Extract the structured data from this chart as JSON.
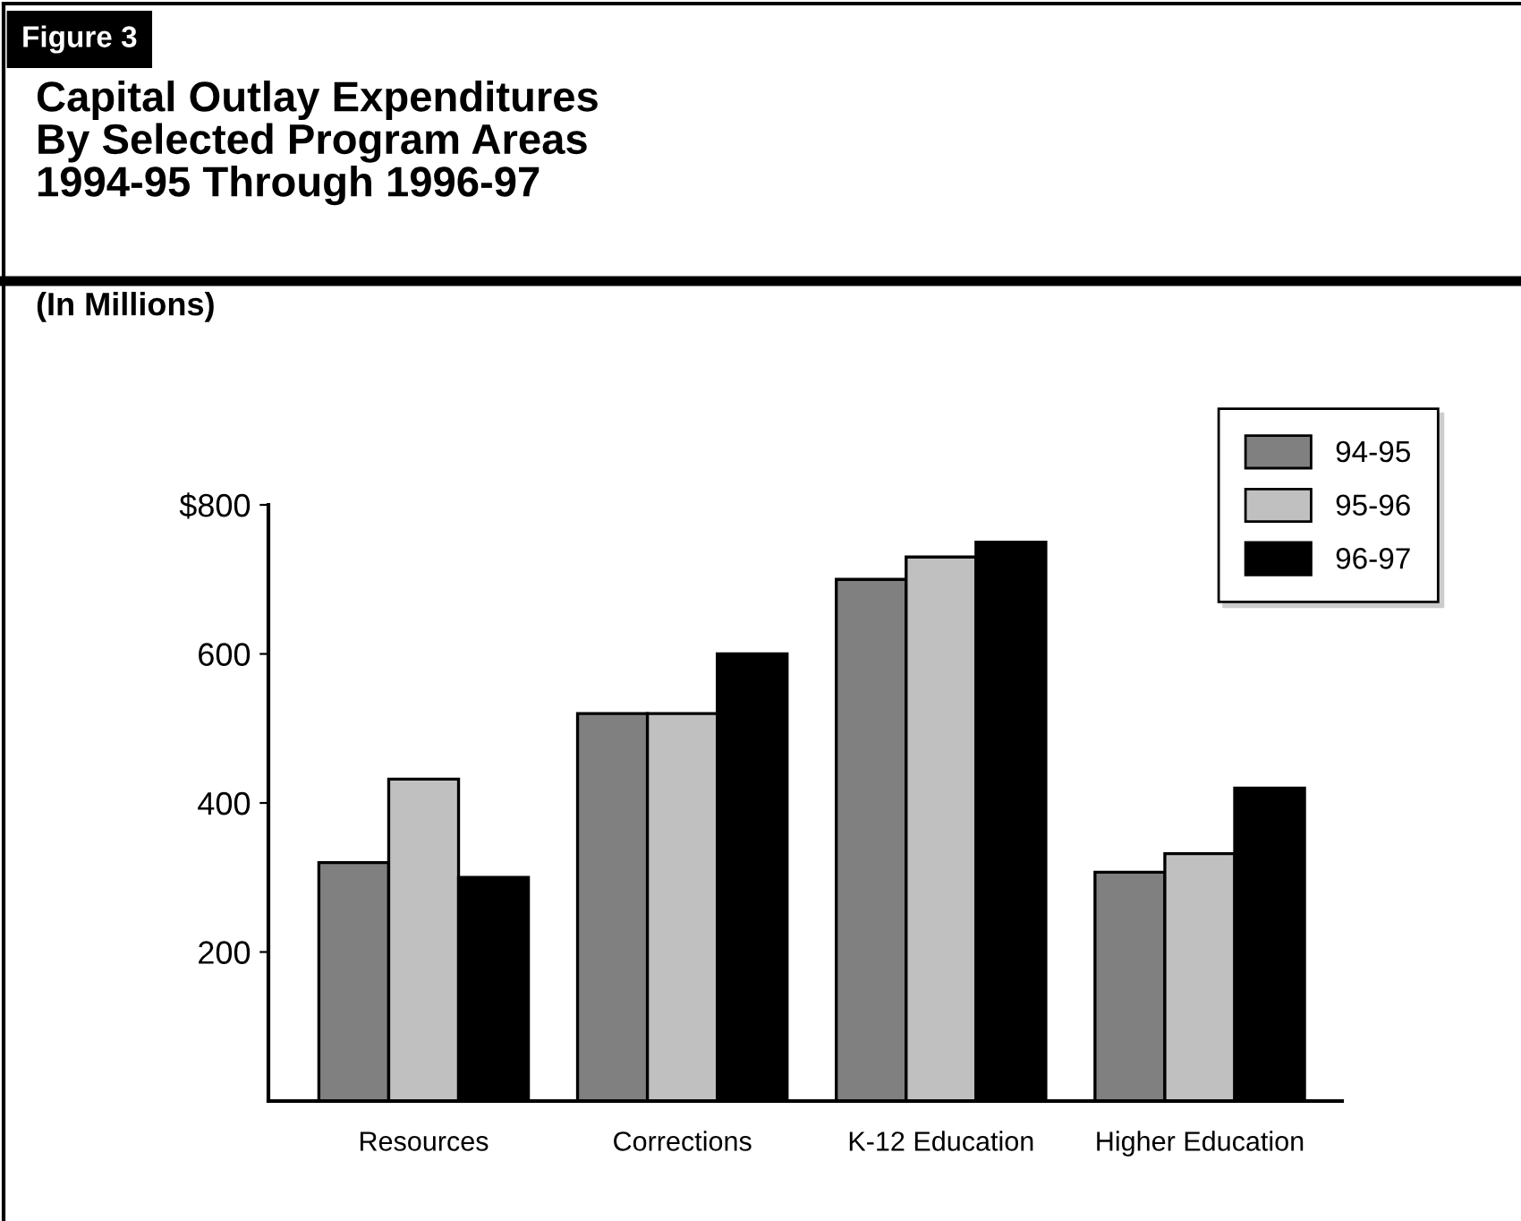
{
  "chart_data": {
    "type": "bar",
    "title": "Capital Outlay Expenditures\nBy Selected Program Areas\n1994-95 Through 1996-97",
    "subtitle": "(In Millions)",
    "annotations": [
      "Figure 3"
    ],
    "categories": [
      "Resources",
      "Corrections",
      "K-12 Education",
      "Higher Education"
    ],
    "series": [
      {
        "name": "94-95",
        "color": "#808080",
        "values": [
          320,
          520,
          700,
          307
        ]
      },
      {
        "name": "95-96",
        "color": "#c0c0c0",
        "values": [
          432,
          520,
          730,
          332
        ]
      },
      {
        "name": "96-97",
        "color": "#000000",
        "values": [
          300,
          600,
          750,
          420
        ]
      }
    ],
    "ylim": [
      0,
      800
    ],
    "yticks": [
      200,
      400,
      600,
      {
        "value": 800,
        "label": "$800"
      }
    ],
    "grid": false,
    "legend": "top right"
  }
}
